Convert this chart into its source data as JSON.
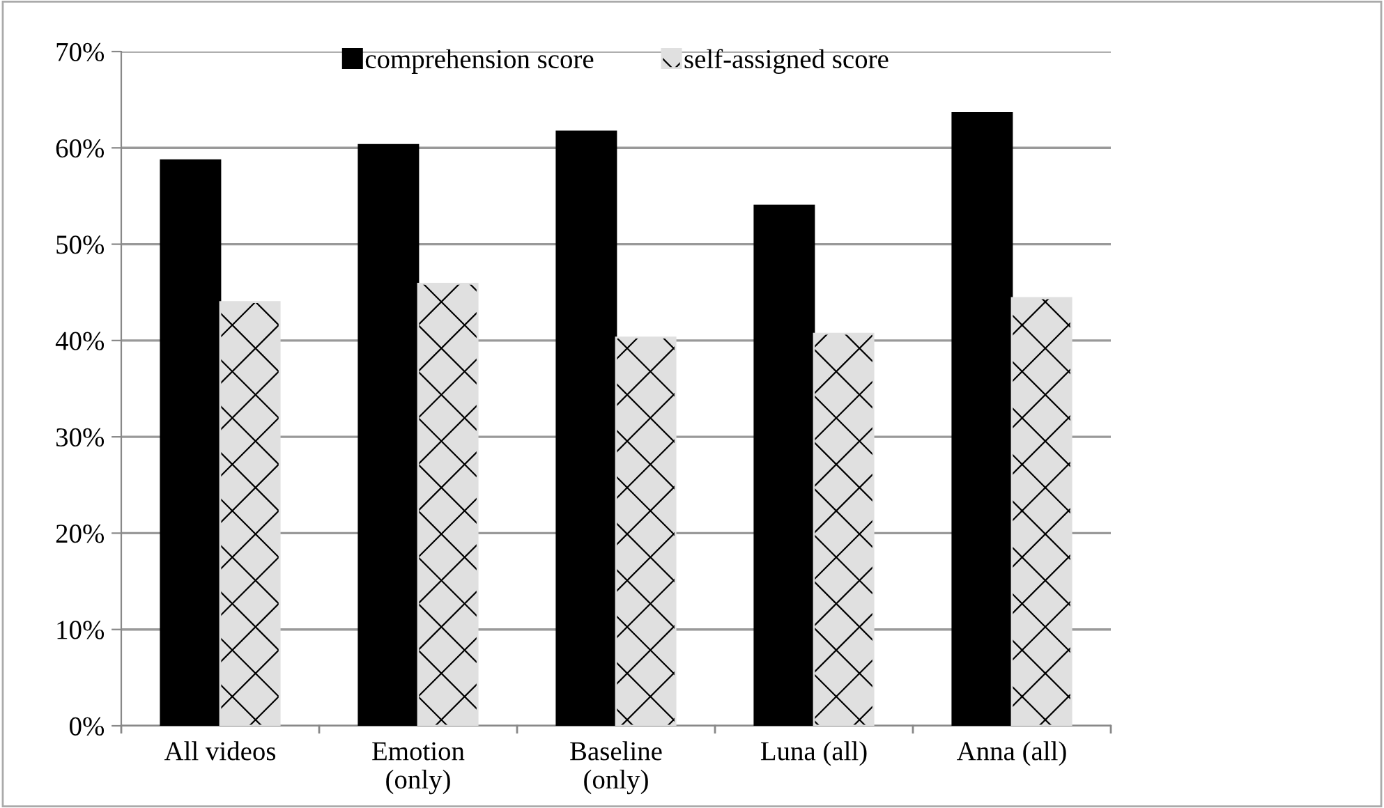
{
  "chart_data": {
    "type": "bar",
    "categories": [
      "All videos",
      "Emotion\n(only)",
      "Baseline\n(only)",
      "Luna (all)",
      "Anna (all)"
    ],
    "series": [
      {
        "name": "comprehension score",
        "color": "#000000",
        "values": [
          58.7,
          60.3,
          61.7,
          54.0,
          63.6
        ]
      },
      {
        "name": "self-assigned score",
        "color": "#e0e0e0",
        "values": [
          44.0,
          45.9,
          40.3,
          40.7,
          44.4
        ]
      }
    ],
    "ylim": [
      0,
      70
    ],
    "yticks": [
      {
        "value": 0,
        "label": "0%"
      },
      {
        "value": 10,
        "label": "10%"
      },
      {
        "value": 20,
        "label": "20%"
      },
      {
        "value": 30,
        "label": "30%"
      },
      {
        "value": 40,
        "label": "40%"
      },
      {
        "value": 50,
        "label": "50%"
      },
      {
        "value": 60,
        "label": "60%"
      },
      {
        "value": 70,
        "label": "70%"
      }
    ],
    "grid": "y",
    "legend": "top"
  }
}
